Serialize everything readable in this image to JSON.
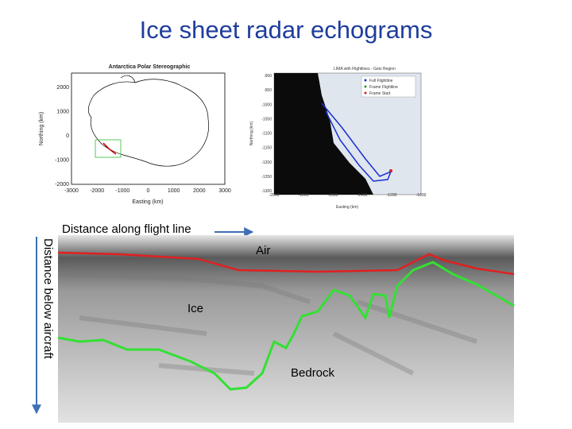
{
  "title": "Ice sheet radar echograms",
  "left_map": {
    "title": "Antarctica Polar Stereographic",
    "x_label": "Easting (km)",
    "y_label": "Northing (km)",
    "x_ticks": [
      "-3000",
      "-2000",
      "-1000",
      "0",
      "1000",
      "2000",
      "3000"
    ],
    "y_ticks": [
      "2000",
      "1000",
      "0",
      "-1000",
      "-2000"
    ]
  },
  "right_map": {
    "title": "LIMA with Flightlines - Getz Region",
    "x_label": "Easting (km)",
    "y_label": "Northing (km)",
    "legend": [
      "Full Flightline",
      "Frame Flightline",
      "Frame Start"
    ],
    "x_ticks": [
      "-2000",
      "-1800",
      "-1600",
      "-1400",
      "-1200",
      "-1000"
    ],
    "y_ticks": [
      "-900",
      "-950",
      "-1000",
      "-1050",
      "-1100",
      "-1150",
      "-1200",
      "-1250",
      "-1300"
    ]
  },
  "echogram": {
    "x_label": "Distance along flight line",
    "y_label": "Distance below aircraft",
    "labels": {
      "air": "Air",
      "ice": "Ice",
      "bedrock": "Bedrock"
    }
  }
}
